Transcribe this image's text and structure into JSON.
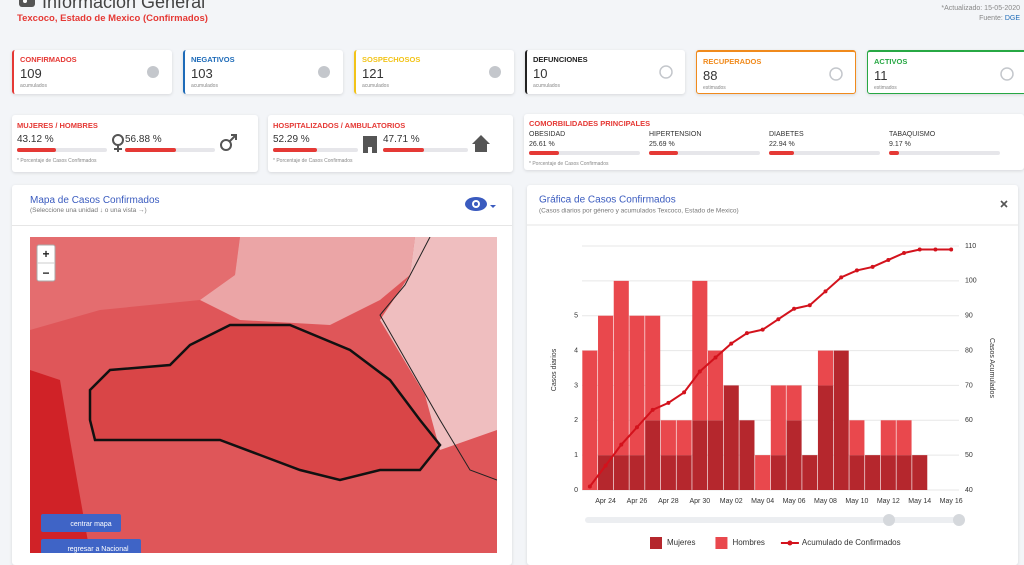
{
  "header": {
    "title": "Información General",
    "subtitle": "Texcoco, Estado de Mexico (Confirmados)",
    "updated": "*Actualizado: 15-05-2020",
    "source_label": "Fuente:",
    "source": "DGE"
  },
  "cards": [
    {
      "label": "CONFIRMADOS",
      "value": 109,
      "note": "acumulados",
      "color": "#e53935",
      "style": "left"
    },
    {
      "label": "NEGATIVOS",
      "value": 103,
      "note": "acumulados",
      "color": "#1e6bb8",
      "style": "left"
    },
    {
      "label": "SOSPECHOSOS",
      "value": 121,
      "note": "acumulados",
      "color": "#f2c318",
      "style": "left"
    },
    {
      "label": "DEFUNCIONES",
      "value": 10,
      "note": "acumulados",
      "color": "#222222",
      "style": "left"
    },
    {
      "label": "RECUPERADOS",
      "value": 88,
      "note": "estimados",
      "color": "#f08a1c",
      "style": "outline"
    },
    {
      "label": "ACTIVOS",
      "value": 11,
      "note": "estimados",
      "color": "#27a844",
      "style": "outline"
    }
  ],
  "gender": {
    "title": "MUJERES / HOMBRES",
    "items": [
      {
        "pct": 43.12,
        "label": "43.12 %"
      },
      {
        "pct": 56.88,
        "label": "56.88 %"
      }
    ],
    "note": "* Porcentaje de Casos Confirmados"
  },
  "hospital": {
    "title": "HOSPITALIZADOS / AMBULATORIOS",
    "items": [
      {
        "pct": 52.29,
        "label": "52.29 %"
      },
      {
        "pct": 47.71,
        "label": "47.71 %"
      }
    ],
    "note": "* Porcentaje de Casos Confirmados"
  },
  "comorbidities": {
    "title": "COMORBILIDADES PRINCIPALES",
    "items": [
      {
        "name": "OBESIDAD",
        "pct": 26.61,
        "label": "26.61 %"
      },
      {
        "name": "HIPERTENSION",
        "pct": 25.69,
        "label": "25.69 %"
      },
      {
        "name": "DIABETES",
        "pct": 22.94,
        "label": "22.94 %"
      },
      {
        "name": "TABAQUISMO",
        "pct": 9.17,
        "label": "9.17 %"
      }
    ],
    "note": "* Porcentaje de Casos Confirmados"
  },
  "map": {
    "title": "Mapa de Casos Confirmados",
    "subtitle": "(Seleccione una unidad ↓ o una vista →)",
    "zoom_in": "+",
    "zoom_out": "−",
    "buttons": [
      "centrar mapa",
      "regresar a Nacional"
    ]
  },
  "chart_data": {
    "type": "bar",
    "stacked": true,
    "title": "Gráfica de Casos Confirmados",
    "subtitle": "(Casos diarios por género y acumulados Texcoco, Estado de Mexico)",
    "ylabel": "Casos diarios",
    "y2label": "Casos Acumulados",
    "categories": [
      null,
      "Apr 24",
      null,
      "Apr 26",
      null,
      "Apr 28",
      null,
      "Apr 30",
      null,
      "May 02",
      null,
      "May 04",
      null,
      "May 06",
      null,
      "May 08",
      null,
      "May 10",
      null,
      "May 12",
      null,
      "May 14",
      null,
      "May 16"
    ],
    "series": [
      {
        "name": "Mujeres",
        "color": "#b5272d",
        "values": [
          0,
          1,
          1,
          1,
          2,
          1,
          1,
          2,
          2,
          3,
          2,
          0,
          1,
          2,
          1,
          3,
          4,
          1,
          1,
          1,
          1,
          1,
          0,
          0
        ]
      },
      {
        "name": "Hombres",
        "color": "#e9484d",
        "values": [
          4,
          4,
          5,
          4,
          3,
          1,
          1,
          4,
          2,
          0,
          0,
          1,
          2,
          1,
          0,
          1,
          0,
          1,
          0,
          1,
          1,
          0,
          0,
          0
        ]
      },
      {
        "name": "Acumulado de Confirmados",
        "color": "#d3121c",
        "type": "line",
        "axis": "y2",
        "values": [
          41,
          47,
          53,
          58,
          63,
          65,
          68,
          74,
          78,
          82,
          85,
          86,
          89,
          92,
          93,
          97,
          101,
          103,
          104,
          106,
          108,
          109,
          109,
          109
        ]
      }
    ],
    "ylim": [
      0,
      7
    ],
    "yticks": [
      0,
      1,
      2,
      3,
      4,
      5
    ],
    "y2lim": [
      40,
      110
    ],
    "y2ticks": [
      40,
      50,
      60,
      70,
      80,
      90,
      100,
      110
    ],
    "grid": true
  }
}
